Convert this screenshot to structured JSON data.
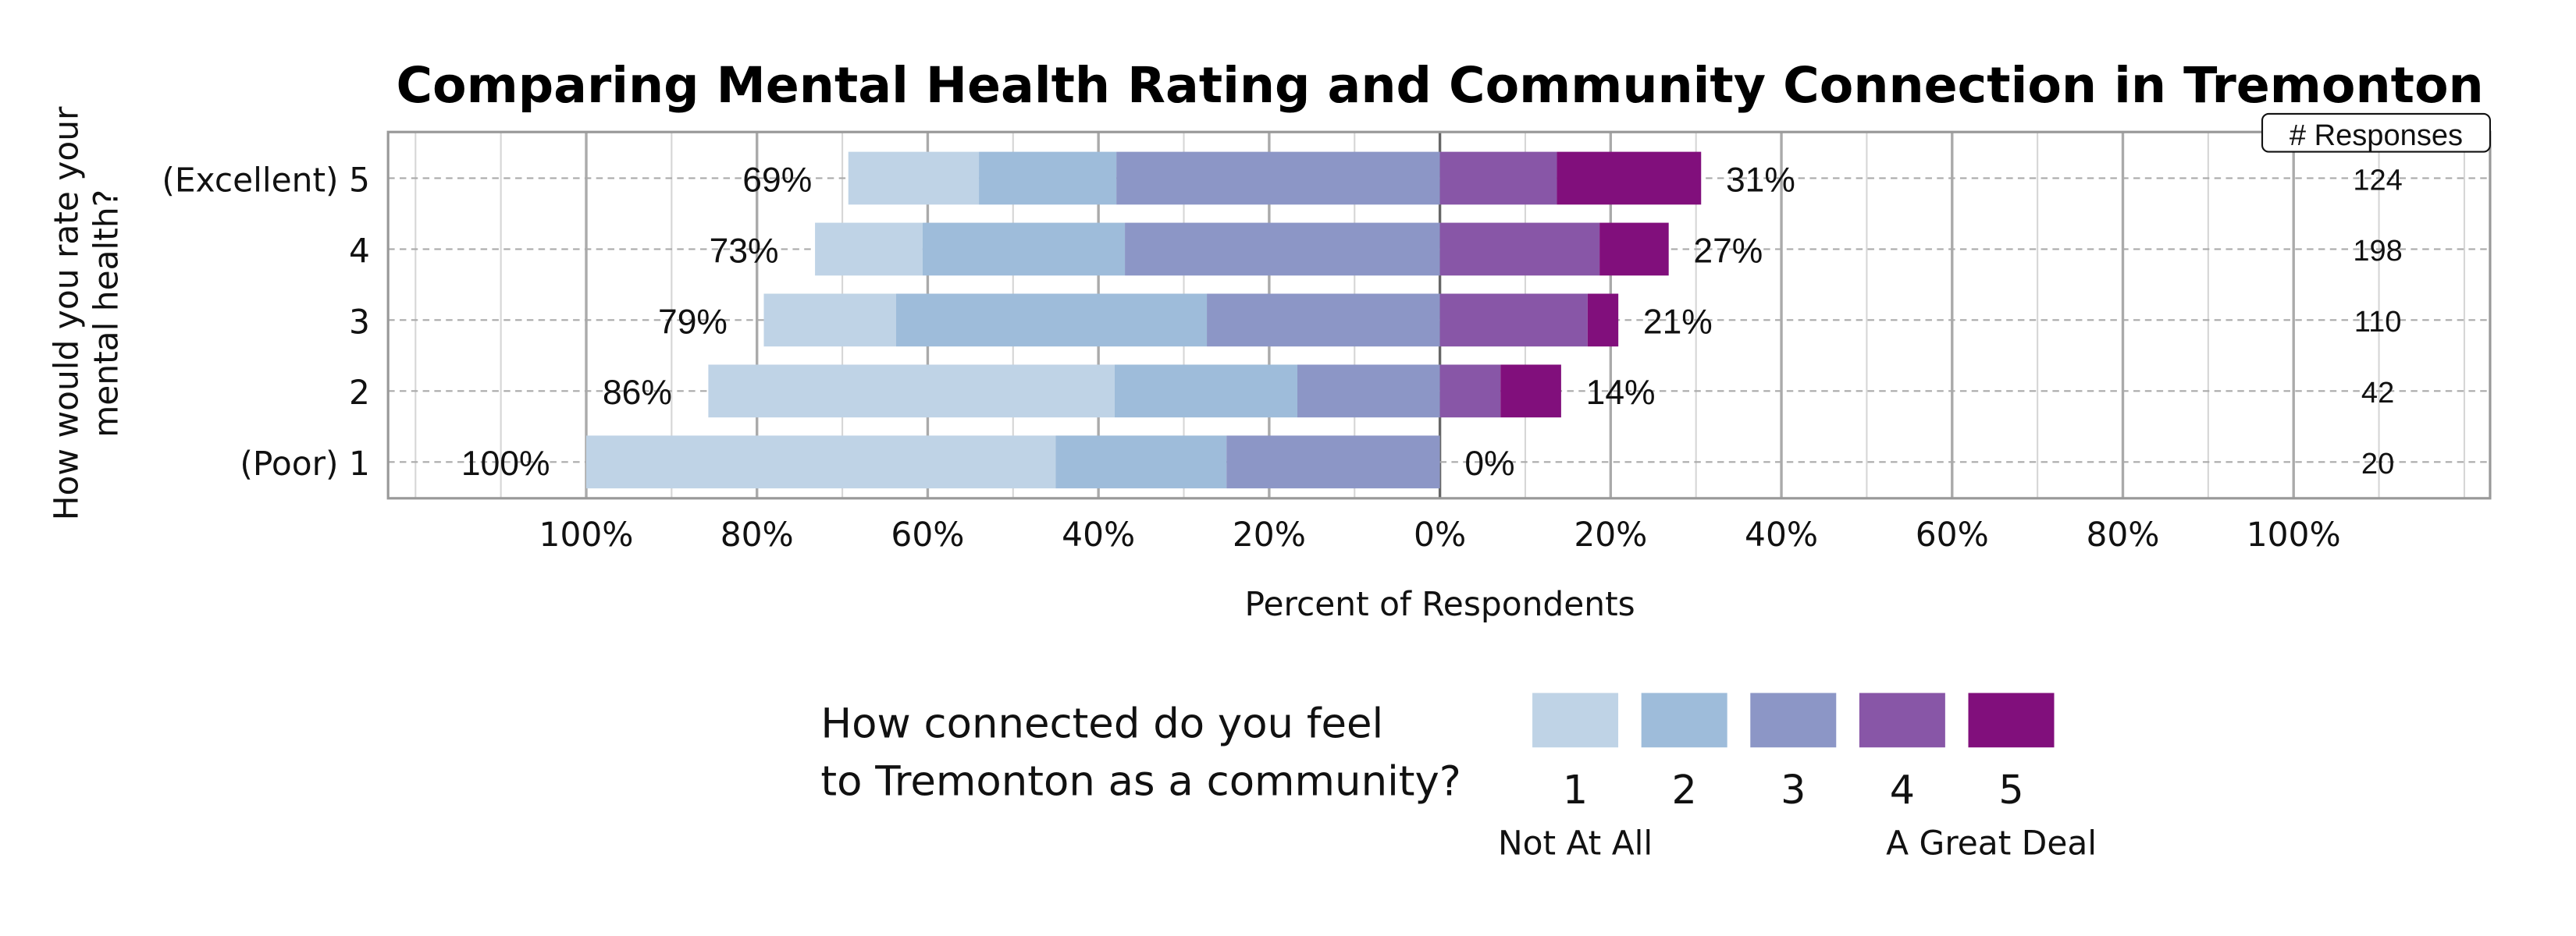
{
  "chart_data": {
    "type": "bar",
    "subtype": "diverging-stacked-horizontal",
    "title": "Comparing Mental Health Rating and Community Connection in Tremonton",
    "ylabel": [
      "How would you rate your",
      "mental health?"
    ],
    "xlabel": "Percent of Respondents",
    "xlim": [
      -100,
      100
    ],
    "x_ticks": [
      "100%",
      "80%",
      "60%",
      "40%",
      "20%",
      "0%",
      "20%",
      "40%",
      "60%",
      "80%",
      "100%"
    ],
    "grid": true,
    "categories": [
      "(Excellent) 5",
      "4",
      "3",
      "2",
      "(Poor) 1"
    ],
    "responses_header": "# Responses",
    "responses": [
      "124",
      "198",
      "110",
      "42",
      "20"
    ],
    "left_labels": [
      "69%",
      "73%",
      "79%",
      "86%",
      "100%"
    ],
    "right_labels": [
      "31%",
      "27%",
      "21%",
      "14%",
      "0%"
    ],
    "series": [
      {
        "name": "1",
        "color": "#bfd3e6",
        "values": [
          15.3,
          12.6,
          15.5,
          47.6,
          55.0
        ]
      },
      {
        "name": "2",
        "color": "#9ebcda",
        "values": [
          16.1,
          23.7,
          36.4,
          21.4,
          20.0
        ]
      },
      {
        "name": "3",
        "color": "#8c96c6",
        "values": [
          37.9,
          36.9,
          27.3,
          16.7,
          25.0
        ]
      },
      {
        "name": "4",
        "color": "#8856a7",
        "values": [
          13.7,
          18.7,
          17.3,
          7.1,
          0
        ]
      },
      {
        "name": "5",
        "color": "#810f7c",
        "values": [
          16.9,
          8.1,
          3.6,
          7.1,
          0
        ]
      }
    ],
    "legend": {
      "title": [
        "How connected do you feel",
        "to Tremonton as a community?"
      ],
      "low_label": "Not At All",
      "high_label": "A Great Deal",
      "placement": "bottom"
    }
  }
}
